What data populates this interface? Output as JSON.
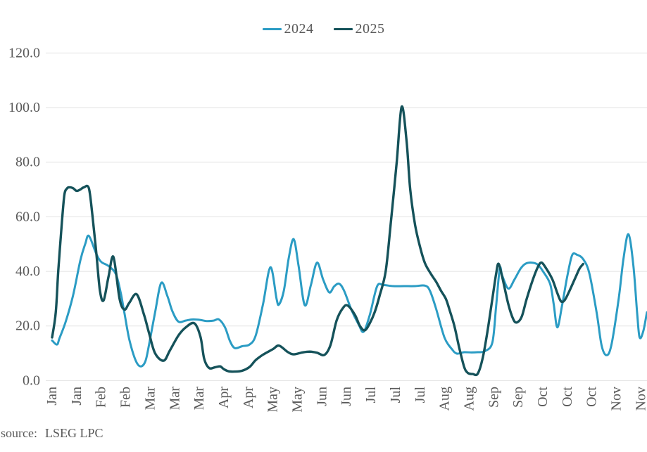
{
  "legend": {
    "items": [
      {
        "label": "2024"
      },
      {
        "label": "2025"
      }
    ]
  },
  "footer": {
    "source_label": "source:",
    "source_value": "LSEG LPC"
  },
  "colors": {
    "series_2024": "#2b9cc4",
    "series_2025": "#15525a",
    "gridline": "#e2e2e2",
    "axis_text": "#595959"
  },
  "chart_data": {
    "type": "line",
    "title": "",
    "xlabel": "",
    "ylabel": "",
    "x_unit": "weeks (tick labels every 2 weeks, Jan through Nov)",
    "x_tick_labels": [
      "Jan",
      "Jan",
      "Feb",
      "Feb",
      "Mar",
      "Mar",
      "Mar",
      "Apr",
      "Apr",
      "May",
      "May",
      "Jun",
      "Jun",
      "Jul",
      "Jul",
      "Jul",
      "Aug",
      "Aug",
      "Sep",
      "Sep",
      "Oct",
      "Oct",
      "Oct",
      "Nov",
      "Nov"
    ],
    "y_ticks": [
      0,
      20,
      40,
      60,
      80,
      100,
      120
    ],
    "y_tick_format": "0.0",
    "ylim": [
      0,
      128
    ],
    "grid": "horizontal",
    "legend_position": "top-center",
    "series": [
      {
        "name": "2024",
        "color": "#2b9cc4",
        "points_format": "[week_index, value]",
        "points": [
          [
            0,
            14.7
          ],
          [
            0.4,
            13.2
          ],
          [
            0.6,
            15.5
          ],
          [
            1.1,
            21.5
          ],
          [
            1.7,
            31
          ],
          [
            2.3,
            44
          ],
          [
            2.7,
            50
          ],
          [
            3,
            53
          ],
          [
            3.6,
            46.5
          ],
          [
            4,
            43.5
          ],
          [
            4.6,
            42
          ],
          [
            5.2,
            39
          ],
          [
            5.6,
            32
          ],
          [
            5.9,
            24.7
          ],
          [
            6.3,
            15
          ],
          [
            6.8,
            7.5
          ],
          [
            7.2,
            5.2
          ],
          [
            7.6,
            7
          ],
          [
            7.9,
            13
          ],
          [
            8.4,
            25
          ],
          [
            8.9,
            35.8
          ],
          [
            9.4,
            31
          ],
          [
            9.8,
            25.5
          ],
          [
            10.3,
            21.6
          ],
          [
            10.9,
            22
          ],
          [
            11.5,
            22.4
          ],
          [
            12.1,
            22.2
          ],
          [
            12.6,
            21.8
          ],
          [
            13.2,
            22
          ],
          [
            13.6,
            22.4
          ],
          [
            14.1,
            19.5
          ],
          [
            14.5,
            14.5
          ],
          [
            14.9,
            11.9
          ],
          [
            15.5,
            12.6
          ],
          [
            16.1,
            13.2
          ],
          [
            16.6,
            16.5
          ],
          [
            17.2,
            28
          ],
          [
            17.8,
            41.5
          ],
          [
            18.3,
            30
          ],
          [
            18.5,
            27.9
          ],
          [
            18.9,
            33
          ],
          [
            19.3,
            45
          ],
          [
            19.7,
            51.8
          ],
          [
            20.1,
            42
          ],
          [
            20.6,
            27.6
          ],
          [
            21.1,
            35
          ],
          [
            21.6,
            43.2
          ],
          [
            22.1,
            37
          ],
          [
            22.6,
            32.3
          ],
          [
            23,
            34.5
          ],
          [
            23.4,
            35.5
          ],
          [
            23.8,
            33
          ],
          [
            24.4,
            26
          ],
          [
            25,
            20.5
          ],
          [
            25.4,
            17.9
          ],
          [
            25.9,
            24
          ],
          [
            26.5,
            34.5
          ],
          [
            27,
            35
          ],
          [
            27.8,
            34.6
          ],
          [
            28.7,
            34.6
          ],
          [
            29.6,
            34.6
          ],
          [
            30.4,
            34.8
          ],
          [
            30.8,
            33
          ],
          [
            31.3,
            26.5
          ],
          [
            32,
            15.7
          ],
          [
            32.6,
            11.5
          ],
          [
            33,
            9.9
          ],
          [
            33.6,
            10.4
          ],
          [
            34.2,
            10.3
          ],
          [
            34.7,
            10.4
          ],
          [
            35.3,
            10.8
          ],
          [
            35.9,
            14
          ],
          [
            36.2,
            27
          ],
          [
            36.5,
            41
          ],
          [
            36.7,
            38.5
          ],
          [
            37.2,
            33.7
          ],
          [
            37.7,
            37
          ],
          [
            38.2,
            41
          ],
          [
            38.6,
            42.8
          ],
          [
            39.1,
            43.2
          ],
          [
            39.6,
            42.5
          ],
          [
            40,
            40.2
          ],
          [
            40.6,
            35.5
          ],
          [
            40.9,
            28
          ],
          [
            41.2,
            19.5
          ],
          [
            41.6,
            28
          ],
          [
            42,
            38
          ],
          [
            42.4,
            45.9
          ],
          [
            42.8,
            46.1
          ],
          [
            43.3,
            44.5
          ],
          [
            43.8,
            39.4
          ],
          [
            44.4,
            25
          ],
          [
            44.8,
            13
          ],
          [
            45.2,
            9.3
          ],
          [
            45.6,
            13
          ],
          [
            46.2,
            30
          ],
          [
            46.6,
            45
          ],
          [
            47,
            53.6
          ],
          [
            47.4,
            42
          ],
          [
            47.7,
            25
          ],
          [
            47.9,
            15.9
          ],
          [
            48.2,
            18
          ],
          [
            48.5,
            25
          ]
        ]
      },
      {
        "name": "2025",
        "color": "#15525a",
        "points_format": "[week_index, value]",
        "points": [
          [
            0,
            15.8
          ],
          [
            0.3,
            25
          ],
          [
            0.5,
            40
          ],
          [
            0.8,
            58
          ],
          [
            1,
            68
          ],
          [
            1.2,
            70.3
          ],
          [
            1.4,
            70.8
          ],
          [
            1.7,
            70.5
          ],
          [
            2,
            69.5
          ],
          [
            2.3,
            70
          ],
          [
            2.6,
            70.8
          ],
          [
            3,
            70.4
          ],
          [
            3.3,
            60
          ],
          [
            3.6,
            47
          ],
          [
            3.9,
            33
          ],
          [
            4.2,
            29.4
          ],
          [
            4.6,
            38
          ],
          [
            5,
            45.3
          ],
          [
            5.5,
            30
          ],
          [
            5.9,
            26
          ],
          [
            6.3,
            28.5
          ],
          [
            6.9,
            31.6
          ],
          [
            7.5,
            24
          ],
          [
            7.9,
            17.5
          ],
          [
            8.4,
            10
          ],
          [
            9.1,
            7.3
          ],
          [
            9.6,
            11
          ],
          [
            10.3,
            16.5
          ],
          [
            10.9,
            19.5
          ],
          [
            11.6,
            21
          ],
          [
            12.1,
            16
          ],
          [
            12.4,
            8
          ],
          [
            12.8,
            4.6
          ],
          [
            13.3,
            4.9
          ],
          [
            13.7,
            5.2
          ],
          [
            14,
            4.2
          ],
          [
            14.4,
            3.4
          ],
          [
            14.9,
            3.3
          ],
          [
            15.5,
            3.6
          ],
          [
            16.1,
            5
          ],
          [
            16.6,
            7.5
          ],
          [
            17.2,
            9.5
          ],
          [
            18,
            11.5
          ],
          [
            18.5,
            12.8
          ],
          [
            19.2,
            10.5
          ],
          [
            19.7,
            9.6
          ],
          [
            20.4,
            10.3
          ],
          [
            21,
            10.6
          ],
          [
            21.6,
            10.2
          ],
          [
            22.2,
            9.4
          ],
          [
            22.7,
            13
          ],
          [
            23.2,
            22
          ],
          [
            23.7,
            26.5
          ],
          [
            24.1,
            27.5
          ],
          [
            24.7,
            24
          ],
          [
            25.1,
            20
          ],
          [
            25.5,
            18.4
          ],
          [
            25.9,
            21
          ],
          [
            26.3,
            25
          ],
          [
            26.7,
            31
          ],
          [
            27.2,
            40
          ],
          [
            27.6,
            57
          ],
          [
            28.1,
            80
          ],
          [
            28.5,
            100.3
          ],
          [
            28.9,
            88
          ],
          [
            29.2,
            70
          ],
          [
            29.6,
            57
          ],
          [
            30,
            49
          ],
          [
            30.4,
            43
          ],
          [
            30.9,
            39
          ],
          [
            31.3,
            36.3
          ],
          [
            31.7,
            33
          ],
          [
            32.1,
            30
          ],
          [
            32.4,
            26
          ],
          [
            32.8,
            20
          ],
          [
            33.2,
            12
          ],
          [
            33.6,
            5
          ],
          [
            33.9,
            2.8
          ],
          [
            34.3,
            2.4
          ],
          [
            34.7,
            2.5
          ],
          [
            35.1,
            8
          ],
          [
            35.5,
            18
          ],
          [
            35.9,
            30
          ],
          [
            36.2,
            39
          ],
          [
            36.4,
            42.8
          ],
          [
            36.7,
            38
          ],
          [
            37.2,
            28
          ],
          [
            37.6,
            22.5
          ],
          [
            37.9,
            21.3
          ],
          [
            38.3,
            23.5
          ],
          [
            38.7,
            30
          ],
          [
            39.2,
            37
          ],
          [
            39.6,
            41.5
          ],
          [
            39.9,
            43.2
          ],
          [
            40.3,
            41
          ],
          [
            40.8,
            37
          ],
          [
            41.2,
            32
          ],
          [
            41.5,
            29
          ],
          [
            41.8,
            29.5
          ],
          [
            42.2,
            33
          ],
          [
            42.7,
            38
          ],
          [
            43,
            41
          ],
          [
            43.3,
            42.7
          ]
        ]
      }
    ]
  }
}
